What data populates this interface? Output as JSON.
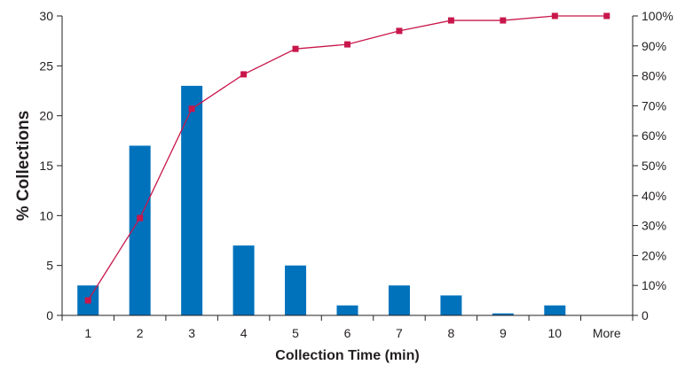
{
  "chart_data": {
    "type": "bar",
    "categories": [
      "1",
      "2",
      "3",
      "4",
      "5",
      "6",
      "7",
      "8",
      "9",
      "10",
      "More"
    ],
    "series": [
      {
        "values": [
          3,
          17,
          23,
          7,
          5,
          1,
          3,
          2,
          0.2,
          1,
          0
        ],
        "type": "bar",
        "axis": "left",
        "color": "#0072bc"
      },
      {
        "values": [
          5,
          32.5,
          69,
          80.5,
          89,
          90.5,
          95,
          98.5,
          98.5,
          100,
          100
        ],
        "type": "line",
        "axis": "right",
        "color": "#c8174b",
        "marker": "square"
      }
    ],
    "xlabel": "Collection Time (min)",
    "ylabel": "% Collections",
    "ylim": [
      0,
      30
    ],
    "y2lim": [
      0,
      100
    ],
    "yticks": [
      "0",
      "5",
      "10",
      "15",
      "20",
      "25",
      "30"
    ],
    "y2ticks": [
      "0",
      "10%",
      "20%",
      "30%",
      "40%",
      "50%",
      "60%",
      "70%",
      "80%",
      "90%",
      "100%"
    ],
    "grid": false,
    "legend": "none"
  }
}
